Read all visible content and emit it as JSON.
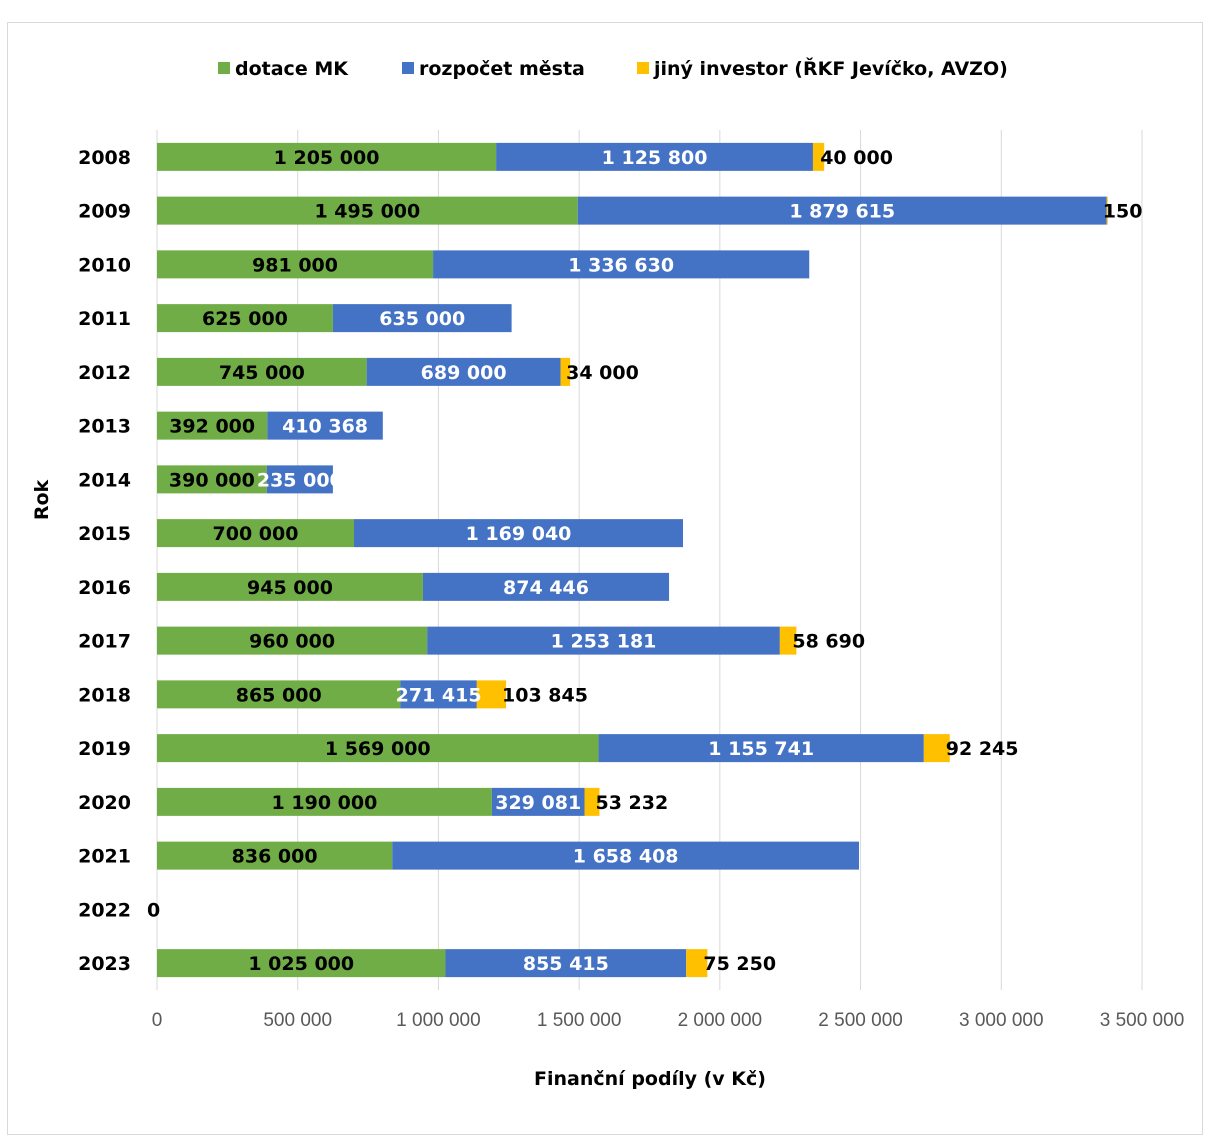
{
  "chart_data": {
    "type": "bar",
    "orientation": "horizontal",
    "stacked": true,
    "xlabel": "Finanční podíly (v Kč)",
    "ylabel": "Rok",
    "xlim": [
      0,
      3500000
    ],
    "x_ticks": [
      "0",
      "500 000",
      "1 000 000",
      "1 500 000",
      "2 000 000",
      "2 500 000",
      "3 000 000",
      "3 500 000"
    ],
    "grid": true,
    "legend_position": "top",
    "categories": [
      "2008",
      "2009",
      "2010",
      "2011",
      "2012",
      "2013",
      "2014",
      "2015",
      "2016",
      "2017",
      "2018",
      "2019",
      "2020",
      "2021",
      "2022",
      "2023"
    ],
    "series": [
      {
        "name": "dotace MK",
        "color": "#70ad47",
        "label_color": "#000000",
        "values": [
          1205000,
          1495000,
          981000,
          625000,
          745000,
          392000,
          390000,
          700000,
          945000,
          960000,
          865000,
          1569000,
          1190000,
          836000,
          0,
          1025000
        ],
        "labels": [
          "1 205 000",
          "1 495 000",
          "981 000",
          "625 000",
          "745 000",
          "392 000",
          "390 000",
          "700 000",
          "945 000",
          "960 000",
          "865 000",
          "1 569 000",
          "1 190 000",
          "836 000",
          "0",
          "1 025 000"
        ]
      },
      {
        "name": "rozpočet města",
        "color": "#4472c4",
        "label_color": "#ffffff",
        "values": [
          1125800,
          1879615,
          1336630,
          635000,
          689000,
          410368,
          235000,
          1169040,
          874446,
          1253181,
          271415,
          1155741,
          329081,
          1658408,
          0,
          855415
        ],
        "labels": [
          "1 125 800",
          "1 879 615",
          "1 336 630",
          "635 000",
          "689 000",
          "410 368",
          "235 000",
          "1 169 040",
          "874 446",
          "1 253 181",
          "271 415",
          "1 155 741",
          "329 081",
          "1 658 408",
          "",
          "855 415"
        ]
      },
      {
        "name": "jiný investor (ŘKF Jevíčko, AVZO)",
        "color": "#ffc000",
        "label_color": "#000000",
        "values": [
          40000,
          150,
          0,
          0,
          34000,
          0,
          0,
          0,
          0,
          58690,
          103845,
          92245,
          53232,
          0,
          0,
          75250
        ],
        "labels": [
          "40 000",
          "150",
          "",
          "",
          "34 000",
          "",
          "",
          "",
          "",
          "58 690",
          "103 845",
          "92 245",
          "53 232",
          "",
          "",
          "75 250"
        ]
      }
    ]
  }
}
